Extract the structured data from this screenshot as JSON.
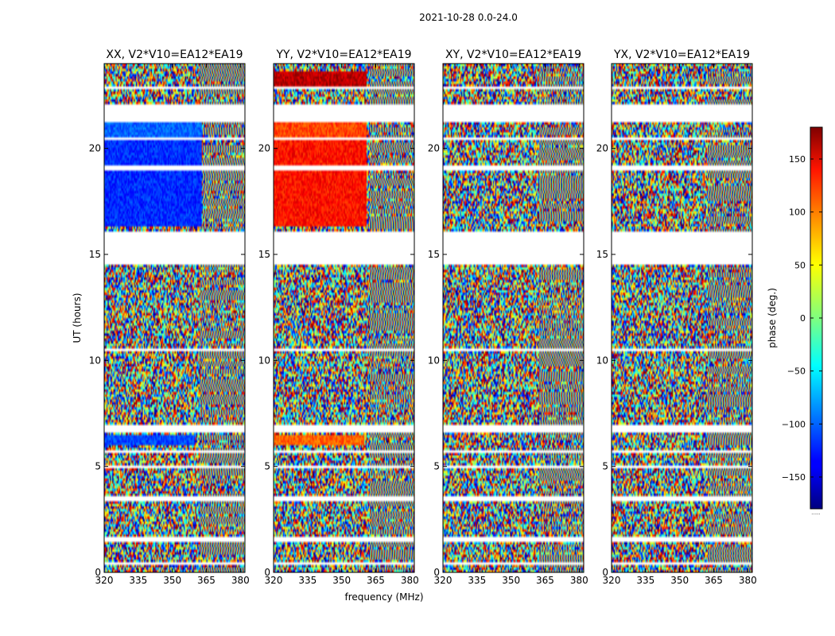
{
  "suptitle": "2021-10-28 0.0-24.0",
  "chart_data": {
    "type": "heatmap",
    "title": "2021-10-28 0.0-24.0",
    "xlabel": "frequency (MHz)",
    "ylabel": "UT (hours)",
    "xlim": [
      320,
      382
    ],
    "ylim": [
      0,
      24
    ],
    "xticks": [
      320,
      335,
      350,
      365,
      380
    ],
    "yticks": [
      0,
      5,
      10,
      15,
      20
    ],
    "colorbar": {
      "label": "phase (deg.)",
      "range": [
        -180,
        180
      ],
      "ticks": [
        150,
        100,
        50,
        0,
        -50,
        -100,
        -150
      ],
      "tick_labels": [
        "150",
        "100",
        "50",
        "0",
        "−50",
        "−100",
        "−150"
      ],
      "footer": "......"
    },
    "panels": [
      {
        "title": "XX, V2*V10=EA12*EA19",
        "coherent": [
          {
            "t0": 16.3,
            "t1": 20.4,
            "f1": 363,
            "phase": -120
          },
          {
            "t0": 20.4,
            "t1": 21.3,
            "f1": 363,
            "phase": -100
          },
          {
            "t0": 6.0,
            "t1": 6.5,
            "f1": 360,
            "phase": -110
          }
        ]
      },
      {
        "title": "YY, V2*V10=EA12*EA19",
        "coherent": [
          {
            "t0": 16.3,
            "t1": 20.4,
            "f1": 361,
            "phase": 130
          },
          {
            "t0": 20.4,
            "t1": 21.3,
            "f1": 361,
            "phase": 110
          },
          {
            "t0": 22.9,
            "t1": 23.6,
            "f1": 361,
            "phase": 160
          },
          {
            "t0": 6.0,
            "t1": 6.5,
            "f1": 360,
            "phase": 100
          }
        ]
      },
      {
        "title": "XY, V2*V10=EA12*EA19",
        "coherent": []
      },
      {
        "title": "YX, V2*V10=EA12*EA19",
        "coherent": []
      }
    ],
    "blank_intervals_hours": [
      [
        0.3,
        0.5
      ],
      [
        1.45,
        1.7
      ],
      [
        3.4,
        3.6
      ],
      [
        4.9,
        5.05
      ],
      [
        5.6,
        5.8
      ],
      [
        6.6,
        6.9
      ],
      [
        10.4,
        10.6
      ],
      [
        14.5,
        16.1
      ],
      [
        16.3,
        16.35
      ],
      [
        19.0,
        19.2
      ],
      [
        20.4,
        20.55
      ],
      [
        21.3,
        22.1
      ],
      [
        22.85,
        22.95
      ],
      [
        23.35,
        23.45
      ]
    ]
  }
}
